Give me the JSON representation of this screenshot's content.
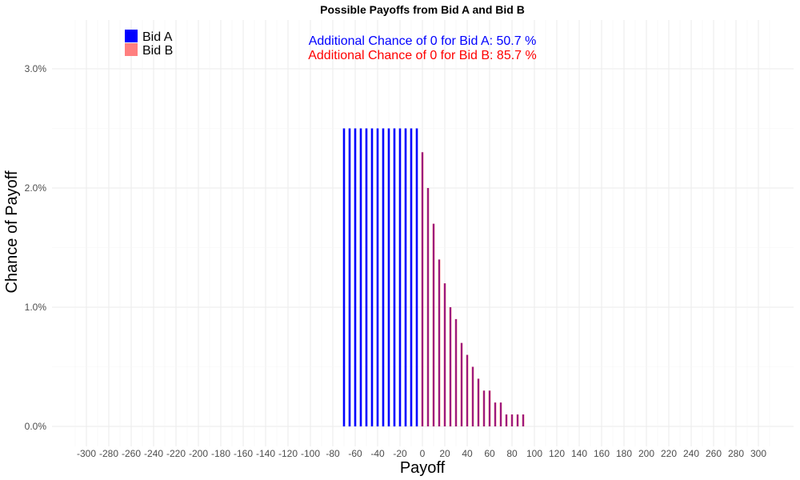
{
  "chart_data": {
    "type": "bar",
    "title": "Possible Payoffs from Bid A and Bid B",
    "xlabel": "Payoff",
    "ylabel": "Chance of Payoff",
    "xlim": [
      -310,
      310
    ],
    "ylim": [
      0,
      3.4
    ],
    "x_ticks": [
      -300,
      -280,
      -260,
      -240,
      -220,
      -200,
      -180,
      -160,
      -140,
      -120,
      -100,
      -80,
      -60,
      -40,
      -20,
      0,
      20,
      40,
      60,
      80,
      100,
      120,
      140,
      160,
      180,
      200,
      220,
      240,
      260,
      280,
      300
    ],
    "y_ticks": [
      0,
      1,
      2,
      3
    ],
    "y_tick_labels": [
      "0.0%",
      "1.0%",
      "2.0%",
      "3.0%"
    ],
    "grid": true,
    "legend_position": "top-left",
    "series": [
      {
        "name": "Bid A",
        "color": "#0000ff",
        "x": [
          -70,
          -65,
          -60,
          -55,
          -50,
          -45,
          -40,
          -35,
          -30,
          -25,
          -20,
          -15,
          -10,
          -5
        ],
        "values": [
          2.5,
          2.5,
          2.5,
          2.5,
          2.5,
          2.5,
          2.5,
          2.5,
          2.5,
          2.5,
          2.5,
          2.5,
          2.5,
          2.5
        ]
      },
      {
        "name": "Bid B",
        "color": "#ff7f7f",
        "x": [
          0,
          5,
          10,
          15,
          20,
          25,
          30,
          35,
          40,
          45,
          50,
          55,
          60,
          65,
          70,
          75,
          80,
          85,
          90
        ],
        "values": [
          2.3,
          2.0,
          1.7,
          1.4,
          1.2,
          1.0,
          0.9,
          0.7,
          0.6,
          0.5,
          0.4,
          0.3,
          0.3,
          0.2,
          0.2,
          0.1,
          0.1,
          0.1,
          0.1
        ]
      }
    ],
    "overlap_color": "#800080",
    "annotations": [
      {
        "text": "Additional Chance of 0 for Bid A:  50.7 %",
        "color": "#0000ff"
      },
      {
        "text": "Additional Chance of 0 for Bid B:  85.7 %",
        "color": "#ff0000"
      }
    ]
  }
}
